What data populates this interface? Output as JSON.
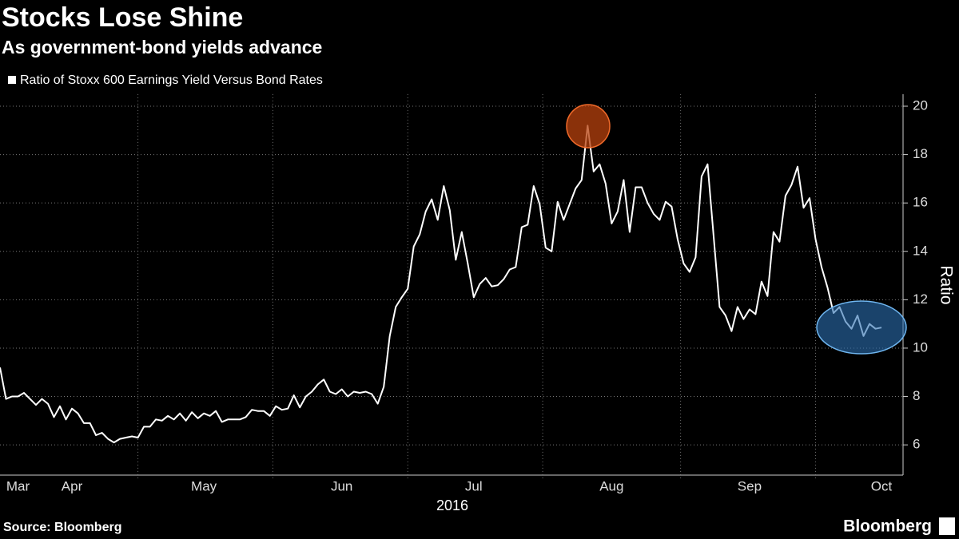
{
  "chart_data": {
    "type": "line",
    "title": "Stocks Lose Shine",
    "subtitle": "As government-bond yields advance",
    "y_label": "Ratio",
    "x_label": "2016",
    "source": "Source: Bloomberg",
    "brand": "Bloomberg",
    "categories": [
      null,
      null,
      null,
      "Mar",
      null,
      null,
      null,
      null,
      null,
      null,
      null,
      null,
      "Apr",
      null,
      null,
      null,
      null,
      null,
      null,
      null,
      null,
      null,
      null,
      null,
      null,
      null,
      null,
      null,
      null,
      null,
      null,
      null,
      null,
      null,
      "May",
      null,
      null,
      null,
      null,
      null,
      null,
      null,
      null,
      null,
      null,
      null,
      null,
      null,
      null,
      null,
      null,
      null,
      null,
      null,
      null,
      null,
      null,
      "Jun",
      null,
      null,
      null,
      null,
      null,
      null,
      null,
      null,
      null,
      null,
      null,
      null,
      null,
      null,
      null,
      null,
      null,
      null,
      null,
      null,
      null,
      "Jul",
      null,
      null,
      null,
      null,
      null,
      null,
      null,
      null,
      null,
      null,
      null,
      null,
      null,
      null,
      null,
      null,
      null,
      null,
      null,
      null,
      null,
      null,
      "Aug",
      null,
      null,
      null,
      null,
      null,
      null,
      null,
      null,
      null,
      null,
      null,
      null,
      null,
      null,
      null,
      null,
      null,
      null,
      null,
      null,
      null,
      null,
      "Sep",
      null,
      null,
      null,
      null,
      null,
      null,
      null,
      null,
      null,
      null,
      null,
      null,
      null,
      null,
      null,
      null,
      null,
      null,
      null,
      null,
      null,
      "Oct"
    ],
    "series": [
      {
        "name": "Ratio of Stoxx 600 Earnings Yield Versus Bond Rates",
        "color": "#ffffff",
        "values": [
          9.2,
          7.9,
          8.0,
          8.0,
          8.15,
          7.9,
          7.65,
          7.9,
          7.7,
          7.15,
          7.6,
          7.05,
          7.5,
          7.3,
          6.9,
          6.9,
          6.4,
          6.5,
          6.25,
          6.1,
          6.25,
          6.3,
          6.35,
          6.3,
          6.75,
          6.75,
          7.05,
          7.0,
          7.2,
          7.05,
          7.3,
          7.0,
          7.35,
          7.1,
          7.3,
          7.2,
          7.4,
          6.95,
          7.05,
          7.05,
          7.05,
          7.15,
          7.45,
          7.4,
          7.4,
          7.2,
          7.6,
          7.45,
          7.5,
          8.05,
          7.55,
          8.0,
          8.2,
          8.5,
          8.7,
          8.2,
          8.1,
          8.3,
          8.0,
          8.2,
          8.15,
          8.2,
          8.1,
          7.7,
          8.4,
          10.5,
          11.7,
          12.1,
          12.45,
          14.2,
          14.7,
          15.65,
          16.15,
          15.3,
          16.7,
          15.7,
          13.65,
          14.8,
          13.5,
          12.1,
          12.65,
          12.9,
          12.55,
          12.6,
          12.85,
          13.25,
          13.35,
          15.0,
          15.1,
          16.7,
          15.95,
          14.15,
          14.0,
          16.05,
          15.3,
          15.95,
          16.6,
          16.95,
          19.2,
          17.3,
          17.6,
          16.8,
          15.15,
          15.65,
          16.95,
          14.8,
          16.65,
          16.65,
          16.0,
          15.55,
          15.3,
          16.05,
          15.85,
          14.5,
          13.5,
          13.15,
          13.75,
          17.1,
          17.6,
          14.65,
          11.7,
          11.35,
          10.7,
          11.7,
          11.2,
          11.6,
          11.4,
          12.75,
          12.15,
          14.8,
          14.4,
          16.3,
          16.75,
          17.5,
          15.8,
          16.2,
          14.5,
          13.35,
          12.5,
          11.45,
          11.7,
          11.1,
          10.8,
          11.35,
          10.5,
          11.0,
          10.8,
          10.85
        ]
      }
    ],
    "ylim": [
      4.75,
      20.5
    ],
    "yticks": [
      6,
      8,
      10,
      12,
      14,
      16,
      18,
      20
    ],
    "grid": true
  }
}
